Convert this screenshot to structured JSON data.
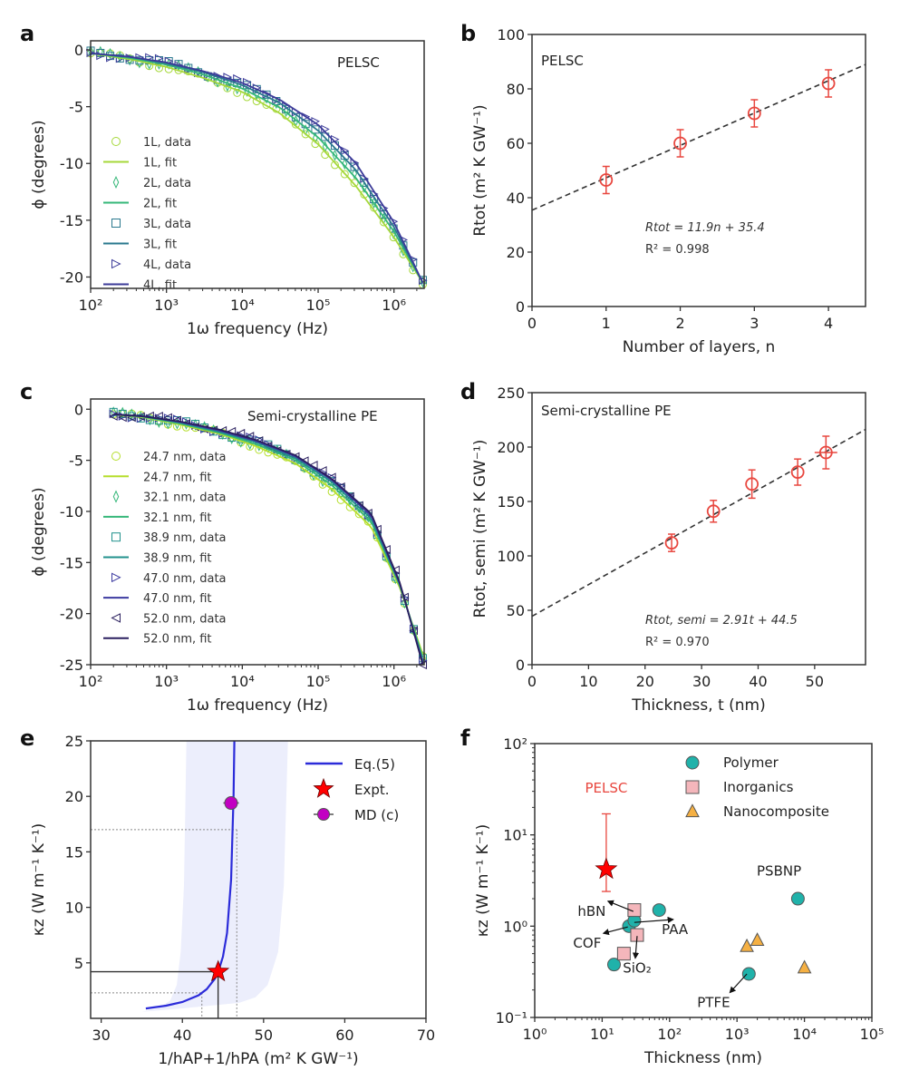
{
  "colors": {
    "axis": "#333333",
    "red": "#e8473f",
    "star": "#ff0000",
    "blue": "#2b2bd9",
    "magenta": "#c200c2",
    "teal": "#20b2aa",
    "pink": "#f4b6bb",
    "orange": "#f5b043",
    "band": "#eceefc"
  },
  "chart_data": [
    {
      "panel": "a",
      "type": "line",
      "xscale": "log",
      "xlabel": "1ω frequency (Hz)",
      "ylabel": "ϕ (degrees)",
      "xlim": [
        100,
        2500000
      ],
      "ylim": [
        -21,
        0.8
      ],
      "xticks": [
        100,
        1000,
        10000,
        100000,
        1000000
      ],
      "yticks": [
        0,
        -5,
        -10,
        -15,
        -20
      ],
      "annotation": "PELSC",
      "x": [
        100,
        316,
        1000,
        3162,
        10000,
        31623,
        100000,
        316228,
        1000000,
        2400000
      ],
      "series": [
        {
          "name": "1L",
          "color": "#a6d83a",
          "marker": "circle",
          "values": [
            -0.3,
            -0.8,
            -1.5,
            -2.5,
            -3.7,
            -5.6,
            -8.3,
            -12.0,
            -16.5,
            -20.5
          ]
        },
        {
          "name": "2L",
          "color": "#35b779",
          "marker": "diamond",
          "values": [
            -0.3,
            -0.7,
            -1.3,
            -2.2,
            -3.4,
            -5.1,
            -7.7,
            -11.3,
            -16.0,
            -20.5
          ]
        },
        {
          "name": "3L",
          "color": "#2a788e",
          "marker": "square",
          "values": [
            -0.3,
            -0.6,
            -1.2,
            -2.0,
            -3.1,
            -4.7,
            -7.1,
            -10.6,
            -15.6,
            -20.5
          ]
        },
        {
          "name": "4L",
          "color": "#3b3a98",
          "marker": "triangle-right",
          "values": [
            -0.3,
            -0.6,
            -1.1,
            -1.9,
            -2.9,
            -4.4,
            -6.6,
            -10.0,
            -15.2,
            -20.5
          ]
        }
      ],
      "legend": [
        "1L, data",
        "1L, fit",
        "2L, data",
        "2L, fit",
        "3L, data",
        "3L, fit",
        "4L, data",
        "4L, fit"
      ]
    },
    {
      "panel": "b",
      "type": "scatter",
      "xlabel": "Number of layers, n",
      "ylabel": "Rtot (m² K GW⁻¹)",
      "xlim": [
        0,
        4.5
      ],
      "ylim": [
        0,
        100
      ],
      "xticks": [
        0,
        1,
        2,
        3,
        4
      ],
      "yticks": [
        0,
        20,
        40,
        60,
        80,
        100
      ],
      "annotation": "PELSC",
      "points": [
        {
          "x": 1,
          "y": 46.5,
          "yerr": 5
        },
        {
          "x": 2,
          "y": 60,
          "yerr": 5
        },
        {
          "x": 3,
          "y": 71,
          "yerr": 5
        },
        {
          "x": 4,
          "y": 82,
          "yerr": 5
        }
      ],
      "fit": {
        "slope": 11.9,
        "intercept": 35.4,
        "equation": "Rtot = 11.9n + 35.4",
        "r2": "R² = 0.998"
      }
    },
    {
      "panel": "c",
      "type": "line",
      "xscale": "log",
      "xlabel": "1ω frequency (Hz)",
      "ylabel": "ϕ (degrees)",
      "xlim": [
        100,
        2500000
      ],
      "ylim": [
        -25,
        1
      ],
      "xticks": [
        100,
        1000,
        10000,
        100000,
        1000000
      ],
      "yticks": [
        0,
        -5,
        -10,
        -15,
        -20,
        -25
      ],
      "annotation": "Semi-crystalline PE",
      "x": [
        200,
        500,
        1500,
        5000,
        15000,
        50000,
        150000,
        500000,
        1200000,
        2400000
      ],
      "series": [
        {
          "name": "24.7 nm",
          "color": "#b5de2b",
          "marker": "circle",
          "values": [
            -0.5,
            -0.8,
            -1.5,
            -2.4,
            -3.6,
            -5.3,
            -7.8,
            -11.5,
            -17.5,
            -24
          ]
        },
        {
          "name": "32.1 nm",
          "color": "#35b779",
          "marker": "diamond",
          "values": [
            -0.5,
            -0.75,
            -1.4,
            -2.3,
            -3.4,
            -5.0,
            -7.4,
            -11.0,
            -17.3,
            -24.3
          ]
        },
        {
          "name": "38.9 nm",
          "color": "#21918c",
          "marker": "square",
          "values": [
            -0.5,
            -0.7,
            -1.3,
            -2.2,
            -3.2,
            -4.8,
            -7.1,
            -10.7,
            -17.2,
            -24.6
          ]
        },
        {
          "name": "47.0 nm",
          "color": "#3b3aa0",
          "marker": "triangle-right",
          "values": [
            -0.5,
            -0.7,
            -1.25,
            -2.1,
            -3.1,
            -4.6,
            -6.9,
            -10.4,
            -17.1,
            -24.8
          ]
        },
        {
          "name": "52.0 nm",
          "color": "#2a1f5e",
          "marker": "triangle-left",
          "values": [
            -0.5,
            -0.7,
            -1.2,
            -2.0,
            -3.0,
            -4.5,
            -6.8,
            -10.2,
            -17.0,
            -25
          ]
        }
      ],
      "legend": [
        "24.7 nm, data",
        "24.7 nm, fit",
        "32.1 nm, data",
        "32.1 nm, fit",
        "38.9 nm, data",
        "38.9 nm, fit",
        "47.0 nm, data",
        "47.0 nm, fit",
        "52.0 nm, data",
        "52.0 nm, fit"
      ]
    },
    {
      "panel": "d",
      "type": "scatter",
      "xlabel": "Thickness, t (nm)",
      "ylabel": "Rtot, semi (m² K GW⁻¹)",
      "xlim": [
        0,
        59
      ],
      "ylim": [
        0,
        250
      ],
      "xticks": [
        0,
        10,
        20,
        30,
        40,
        50
      ],
      "yticks": [
        0,
        50,
        100,
        150,
        200,
        250
      ],
      "annotation": "Semi-crystalline PE",
      "points": [
        {
          "x": 24.7,
          "y": 112,
          "yerr": 8
        },
        {
          "x": 32.1,
          "y": 141,
          "yerr": 10
        },
        {
          "x": 38.9,
          "y": 166,
          "yerr": 13
        },
        {
          "x": 47.0,
          "y": 177,
          "yerr": 12
        },
        {
          "x": 52.0,
          "y": 195,
          "yerr": 15,
          "xerr": 2
        }
      ],
      "fit": {
        "slope": 2.91,
        "intercept": 44.5,
        "equation": "Rtot, semi = 2.91t + 44.5",
        "r2": "R² = 0.970"
      }
    },
    {
      "panel": "e",
      "type": "line",
      "xlabel": "1/hAP+1/hPA (m² K GW⁻¹)",
      "ylabel": "κz (W m⁻¹ K⁻¹)",
      "xlim": [
        28.7,
        70
      ],
      "ylim": [
        0,
        25
      ],
      "xticks": [
        30,
        40,
        50,
        60,
        70
      ],
      "yticks": [
        5,
        10,
        15,
        20,
        25
      ],
      "curve": {
        "name": "Eq.(5)",
        "x": [
          35.5,
          38,
          40,
          42,
          43,
          44,
          44.4,
          45,
          45.5,
          46,
          46.3,
          46.4
        ],
        "y": [
          0.89,
          1.14,
          1.47,
          2.08,
          2.63,
          3.57,
          4.17,
          5.56,
          7.69,
          12.5,
          20,
          25
        ]
      },
      "band": {
        "left": [
          [
            35,
            0.6
          ],
          [
            37,
            0.9
          ],
          [
            38.5,
            1.6
          ],
          [
            39.3,
            3
          ],
          [
            39.8,
            6
          ],
          [
            40.2,
            12
          ],
          [
            40.5,
            25
          ]
        ],
        "right": [
          [
            53,
            25
          ],
          [
            52.5,
            12
          ],
          [
            51.8,
            6
          ],
          [
            50.5,
            3
          ],
          [
            49,
            1.9
          ],
          [
            47,
            1.4
          ],
          [
            40,
            0.9
          ],
          [
            35,
            0.6
          ]
        ]
      },
      "expt": {
        "name": "Expt.",
        "x": 44.4,
        "y": 4.2
      },
      "md": {
        "name": "MD (c)",
        "x": 46,
        "y": 19.4,
        "xerr": 0.5
      },
      "guides": {
        "solid": {
          "x": 44.4,
          "y": 4.2
        },
        "dotted_low": {
          "x": 42.4,
          "y": 2.3
        },
        "dotted_high": {
          "x": 46.7,
          "y": 17
        }
      }
    },
    {
      "panel": "f",
      "type": "scatter",
      "xscale": "log",
      "yscale": "log",
      "xlabel": "Thickness (nm)",
      "ylabel": "κz (W m⁻¹ K⁻¹)",
      "xlim": [
        1,
        100000
      ],
      "ylim": [
        0.1,
        100
      ],
      "xticks": [
        1,
        10,
        100,
        1000,
        10000,
        100000
      ],
      "yticks": [
        0.1,
        1,
        10,
        100
      ],
      "pelsc": {
        "label": "PELSC",
        "x": 11.5,
        "y": 4.2,
        "ylow": 2.4,
        "yhigh": 17
      },
      "series": [
        {
          "name": "Polymer",
          "marker": "circle",
          "points": [
            [
              15,
              0.38
            ],
            [
              25,
              1.0
            ],
            [
              30,
              1.15
            ],
            [
              70,
              1.5
            ],
            [
              1500,
              0.3
            ],
            [
              8000,
              2.0
            ]
          ]
        },
        {
          "name": "Inorganics",
          "marker": "square",
          "points": [
            [
              30,
              1.5
            ],
            [
              33,
              0.8
            ],
            [
              21,
              0.5
            ]
          ]
        },
        {
          "name": "Nanocomposite",
          "marker": "triangle",
          "points": [
            [
              1400,
              0.6
            ],
            [
              2000,
              0.7
            ],
            [
              10000,
              0.35
            ]
          ]
        }
      ],
      "labels": [
        {
          "text": "hBN",
          "x": 7,
          "y": 1.3,
          "ax": 29,
          "ay": 1.45
        },
        {
          "text": "PAA",
          "x": 120,
          "y": 0.82,
          "ax": 30,
          "ay": 1.1
        },
        {
          "text": "COF",
          "x": 6,
          "y": 0.58,
          "ax": 24,
          "ay": 0.98
        },
        {
          "text": "SiO₂",
          "x": 33,
          "y": 0.31,
          "ax": 33,
          "ay": 0.78
        },
        {
          "text": "PSBNP",
          "x": 4200,
          "y": 3.6
        },
        {
          "text": "PTFE",
          "x": 450,
          "y": 0.13,
          "ax": 1400,
          "ay": 0.3
        }
      ]
    }
  ]
}
